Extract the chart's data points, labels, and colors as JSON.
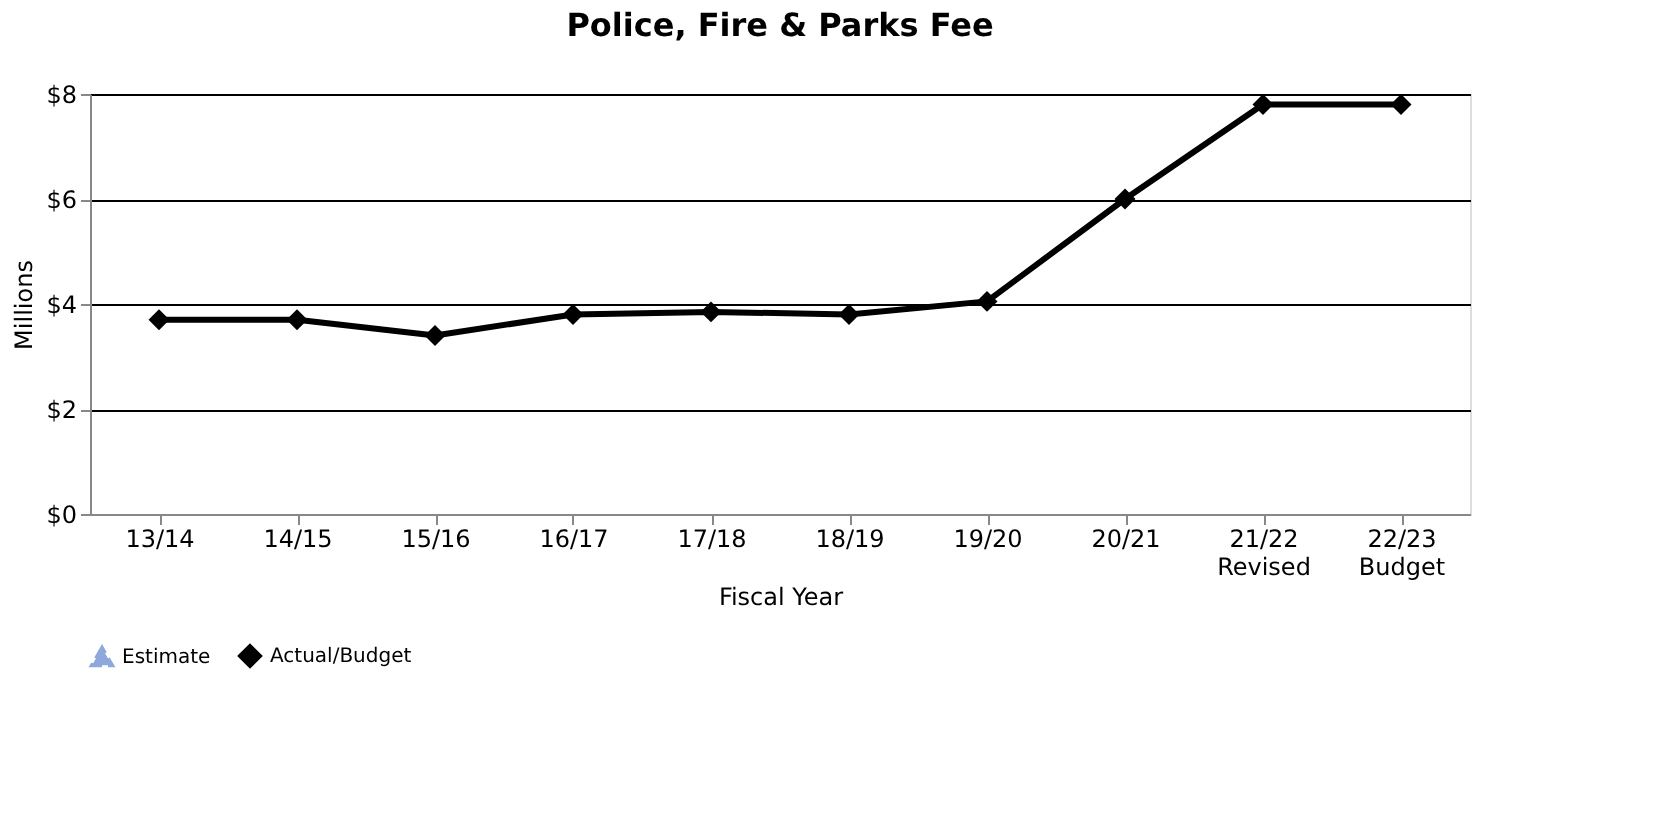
{
  "chart_data": {
    "type": "line",
    "title": "Police, Fire & Parks Fee",
    "xlabel": "Fiscal Year",
    "ylabel": "Millions",
    "categories": [
      "13/14",
      "14/15",
      "15/16",
      "16/17",
      "17/18",
      "18/19",
      "19/20",
      "20/21",
      "21/22\nRevised",
      "22/23\nBudget"
    ],
    "series": [
      {
        "name": "Estimate",
        "color": "#8fa8dc",
        "marker": "triangle",
        "line_style": "dashed",
        "values": [
          null,
          null,
          null,
          null,
          null,
          null,
          null,
          null,
          null,
          null
        ]
      },
      {
        "name": "Actual/Budget",
        "color": "#000000",
        "marker": "diamond",
        "line_style": "solid",
        "values": [
          3.7,
          3.7,
          3.4,
          3.8,
          3.85,
          3.8,
          4.05,
          6.0,
          7.8,
          7.8
        ]
      }
    ],
    "ylim": [
      0,
      8
    ],
    "yticks": [
      {
        "value": 0,
        "label": "$0"
      },
      {
        "value": 2,
        "label": "$2"
      },
      {
        "value": 4,
        "label": "$4"
      },
      {
        "value": 6,
        "label": "$6"
      },
      {
        "value": 8,
        "label": "$8"
      }
    ],
    "grid": "y",
    "legend": "bottom left"
  }
}
